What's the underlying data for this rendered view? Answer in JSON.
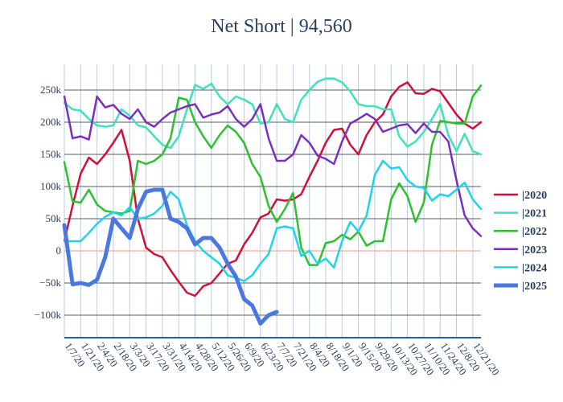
{
  "chart_data": {
    "type": "line",
    "title": "Net Short | 94,560",
    "xlabel": "",
    "ylabel": "",
    "ylim": [
      -135000,
      290000
    ],
    "grid": true,
    "legend_position": "right",
    "y_ticks": [
      {
        "value": 250000,
        "label": "250k"
      },
      {
        "value": 200000,
        "label": "200k"
      },
      {
        "value": 150000,
        "label": "150k"
      },
      {
        "value": 100000,
        "label": "100k"
      },
      {
        "value": 50000,
        "label": "50k"
      },
      {
        "value": 0,
        "label": "0"
      },
      {
        "value": -50000,
        "label": "−50k"
      },
      {
        "value": -100000,
        "label": "−100k"
      }
    ],
    "x_ticks": [
      "1/7/20",
      "1/21/20",
      "2/4/20",
      "2/18/20",
      "3/3/20",
      "3/17/20",
      "3/31/20",
      "4/14/20",
      "4/28/20",
      "5/12/20",
      "5/26/20",
      "6/9/20",
      "6/23/20",
      "7/7/20",
      "7/21/20",
      "8/4/20",
      "8/18/20",
      "9/1/20",
      "9/15/20",
      "9/29/20",
      "10/13/20",
      "10/27/20",
      "11/10/20",
      "11/24/20",
      "12/8/20",
      "12/21/20"
    ],
    "weeks": 52,
    "series": [
      {
        "name": "|2020",
        "color": "#d0103a",
        "width": 2.5,
        "values": [
          15000,
          70000,
          120000,
          145000,
          135000,
          150000,
          168000,
          188000,
          140000,
          50000,
          5000,
          -5000,
          -10000,
          -30000,
          -48000,
          -65000,
          -70000,
          -55000,
          -50000,
          -35000,
          -20000,
          -15000,
          10000,
          28000,
          52000,
          58000,
          80000,
          78000,
          80000,
          88000,
          115000,
          140000,
          168000,
          188000,
          190000,
          165000,
          150000,
          180000,
          200000,
          212000,
          240000,
          255000,
          262000,
          245000,
          244000,
          252000,
          248000,
          230000,
          212000,
          198000,
          190000,
          200000
        ]
      },
      {
        "name": "|2021",
        "color": "#40e0c0",
        "width": 2.5,
        "values": [
          230000,
          220000,
          218000,
          205000,
          195000,
          193000,
          195000,
          220000,
          210000,
          195000,
          192000,
          178000,
          165000,
          160000,
          178000,
          220000,
          258000,
          252000,
          260000,
          240000,
          228000,
          240000,
          235000,
          228000,
          198000,
          200000,
          228000,
          205000,
          200000,
          235000,
          250000,
          263000,
          268000,
          268000,
          262000,
          248000,
          228000,
          225000,
          225000,
          220000,
          220000,
          178000,
          162000,
          170000,
          185000,
          205000,
          228000,
          180000,
          155000,
          182000,
          155000,
          150000
        ]
      },
      {
        "name": "|2022",
        "color": "#2ec02e",
        "width": 2.5,
        "values": [
          138000,
          77000,
          75000,
          95000,
          72000,
          62000,
          60000,
          58000,
          62000,
          140000,
          135000,
          140000,
          150000,
          175000,
          238000,
          235000,
          200000,
          178000,
          160000,
          180000,
          195000,
          185000,
          168000,
          135000,
          115000,
          70000,
          45000,
          65000,
          90000,
          5000,
          -22000,
          -22000,
          12000,
          15000,
          25000,
          18000,
          30000,
          8000,
          15000,
          15000,
          80000,
          105000,
          85000,
          45000,
          75000,
          165000,
          202000,
          200000,
          198000,
          198000,
          240000,
          257000
        ]
      },
      {
        "name": "|2023",
        "color": "#7b2fbe",
        "width": 2.5,
        "values": [
          240000,
          175000,
          178000,
          173000,
          240000,
          223000,
          227000,
          213000,
          205000,
          220000,
          200000,
          193000,
          205000,
          215000,
          220000,
          225000,
          228000,
          207000,
          212000,
          215000,
          225000,
          205000,
          193000,
          205000,
          228000,
          175000,
          140000,
          140000,
          150000,
          180000,
          168000,
          148000,
          143000,
          135000,
          170000,
          198000,
          205000,
          213000,
          205000,
          185000,
          190000,
          195000,
          197000,
          183000,
          198000,
          185000,
          185000,
          170000,
          110000,
          55000,
          35000,
          23000
        ]
      },
      {
        "name": "|2024",
        "color": "#1ed4ea",
        "width": 2.5,
        "values": [
          15000,
          15000,
          15000,
          28000,
          42000,
          53000,
          60000,
          55000,
          68000,
          50000,
          52000,
          58000,
          70000,
          92000,
          80000,
          40000,
          15000,
          0,
          -10000,
          -20000,
          -38000,
          -42000,
          -47000,
          -38000,
          -20000,
          -5000,
          35000,
          38000,
          35000,
          -8000,
          0,
          -20000,
          -12000,
          -26000,
          15000,
          45000,
          30000,
          55000,
          118000,
          140000,
          128000,
          130000,
          110000,
          100000,
          98000,
          78000,
          88000,
          85000,
          95000,
          106000,
          80000,
          65000
        ]
      },
      {
        "name": "|2025",
        "color": "#4b78e0",
        "width": 5,
        "values": [
          40000,
          -52000,
          -50000,
          -53000,
          -45000,
          -10000,
          50000,
          35000,
          20000,
          65000,
          92000,
          95000,
          95000,
          50000,
          45000,
          35000,
          10000,
          20000,
          20000,
          5000,
          -20000,
          -40000,
          -75000,
          -85000,
          -113000,
          -100000,
          -95000
        ]
      }
    ]
  }
}
